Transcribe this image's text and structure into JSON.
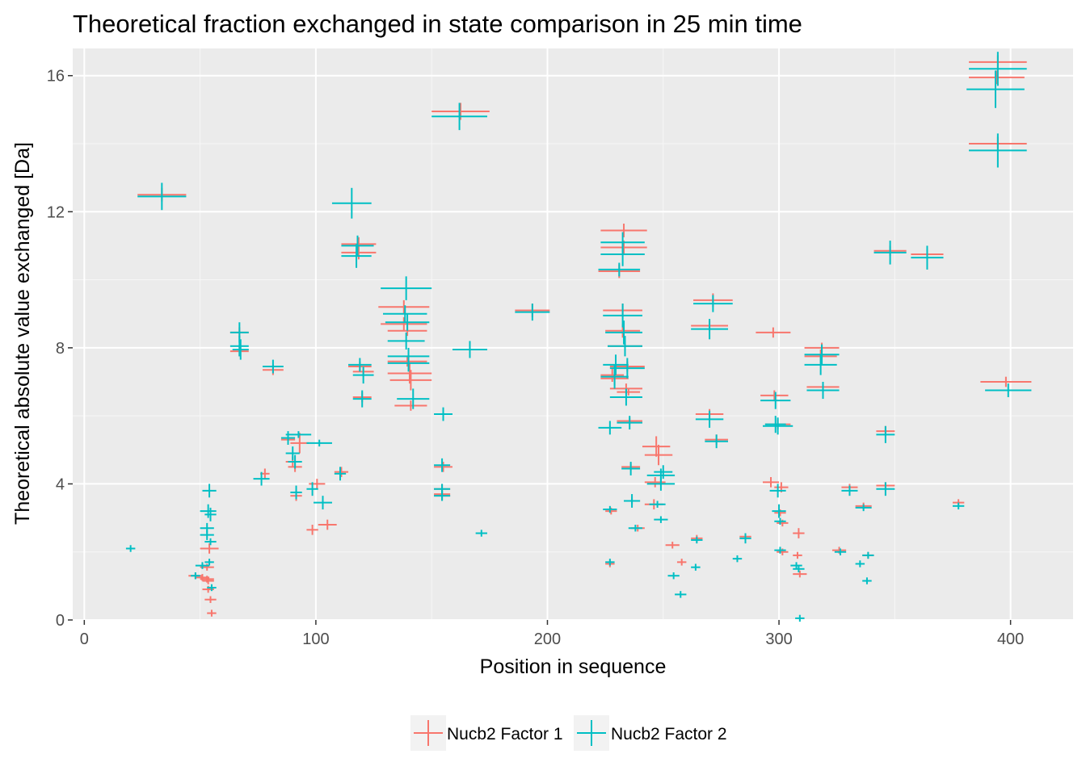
{
  "chart_data": {
    "type": "scatter",
    "title": "Theoretical fraction exchanged in state comparison in 25 min time",
    "xlabel": "Position in sequence",
    "ylabel": "Theoretical absolute value exchanged [Da]",
    "xlim": [
      -5,
      427
    ],
    "ylim": [
      0,
      16.8
    ],
    "x_ticks": [
      0,
      100,
      200,
      300,
      400
    ],
    "y_ticks": [
      0,
      4,
      8,
      12,
      16
    ],
    "grid": true,
    "legend_position": "bottom",
    "panel_background": "#ebebeb",
    "series": [
      {
        "name": "Nucb2 Factor 1",
        "color": "#f8766d",
        "segments": [
          [
            23,
            44,
            12.5,
            0.2
          ],
          [
            63,
            71,
            8.45,
            0.15
          ],
          [
            63,
            71,
            7.9,
            0.15
          ],
          [
            76,
            80,
            4.3,
            0.15
          ],
          [
            77,
            86,
            7.35,
            0.15
          ],
          [
            85,
            91,
            5.3,
            0.15
          ],
          [
            87,
            93,
            4.65,
            0.15
          ],
          [
            88,
            94,
            4.5,
            0.15
          ],
          [
            89,
            97,
            5.2,
            0.3
          ],
          [
            89,
            94,
            3.65,
            0.15
          ],
          [
            97,
            104,
            4.0,
            0.15
          ],
          [
            96,
            101,
            2.65,
            0.15
          ],
          [
            101,
            109,
            2.8,
            0.15
          ],
          [
            108,
            114,
            4.35,
            0.15
          ],
          [
            111,
            126,
            11.05,
            0.2
          ],
          [
            111,
            126,
            10.8,
            0.2
          ],
          [
            114,
            124,
            7.45,
            0.15
          ],
          [
            116,
            125,
            7.3,
            0.15
          ],
          [
            116,
            124,
            6.55,
            0.15
          ],
          [
            127,
            149,
            9.2,
            0.2
          ],
          [
            128,
            148,
            8.7,
            0.2
          ],
          [
            131,
            148,
            8.5,
            0.15
          ],
          [
            131,
            148,
            7.6,
            0.15
          ],
          [
            131,
            150,
            7.25,
            0.3
          ],
          [
            132,
            150,
            7.05,
            0.3
          ],
          [
            134,
            148,
            6.3,
            0.15
          ],
          [
            151,
            159,
            4.5,
            0.15
          ],
          [
            151,
            158,
            3.85,
            0.15
          ],
          [
            151,
            158,
            3.7,
            0.15
          ],
          [
            151,
            158,
            3.65,
            0.15
          ],
          [
            150,
            175,
            14.95,
            0.25
          ],
          [
            186,
            201,
            9.1,
            0.2
          ],
          [
            45,
            51,
            1.3,
            0.1
          ],
          [
            48,
            54,
            1.25,
            0.1
          ],
          [
            50,
            58,
            2.1,
            0.15
          ],
          [
            50,
            56,
            1.55,
            0.1
          ],
          [
            50,
            56,
            1.2,
            0.1
          ],
          [
            51,
            56,
            1.15,
            0.1
          ],
          [
            51,
            56,
            0.9,
            0.1
          ],
          [
            52,
            57,
            0.6,
            0.1
          ],
          [
            53,
            57,
            0.2,
            0.1
          ],
          [
            225,
            230,
            3.2,
            0.1
          ],
          [
            225,
            229,
            1.65,
            0.1
          ],
          [
            223,
            233,
            7.2,
            0.2
          ],
          [
            223,
            235,
            7.1,
            0.2
          ],
          [
            223,
            243,
            11.45,
            0.2
          ],
          [
            223,
            243,
            10.95,
            0.2
          ],
          [
            222,
            240,
            10.25,
            0.2
          ],
          [
            224,
            241,
            9.1,
            0.2
          ],
          [
            225,
            240,
            8.5,
            0.2
          ],
          [
            226,
            241,
            8.05,
            0.15
          ],
          [
            227,
            242,
            7.45,
            0.15
          ],
          [
            227,
            241,
            6.8,
            0.15
          ],
          [
            230,
            240,
            6.7,
            0.1
          ],
          [
            230,
            241,
            5.85,
            0.1
          ],
          [
            232,
            240,
            4.5,
            0.1
          ],
          [
            233,
            240,
            3.5,
            0.1
          ],
          [
            236,
            242,
            2.7,
            0.1
          ],
          [
            241,
            253,
            5.1,
            0.3
          ],
          [
            242,
            254,
            4.85,
            0.3
          ],
          [
            242,
            251,
            4.05,
            0.15
          ],
          [
            242,
            250,
            3.4,
            0.15
          ],
          [
            251,
            257,
            2.2,
            0.1
          ],
          [
            256,
            260,
            1.7,
            0.1
          ],
          [
            262,
            267,
            2.4,
            0.1
          ],
          [
            263,
            280,
            9.4,
            0.2
          ],
          [
            262,
            278,
            8.65,
            0.15
          ],
          [
            264,
            276,
            6.05,
            0.15
          ],
          [
            268,
            278,
            5.3,
            0.15
          ],
          [
            283,
            288,
            2.45,
            0.1
          ],
          [
            290,
            305,
            8.45,
            0.15
          ],
          [
            293,
            300,
            4.05,
            0.15
          ],
          [
            292,
            304,
            6.6,
            0.15
          ],
          [
            294,
            305,
            5.75,
            0.15
          ],
          [
            298,
            304,
            3.9,
            0.15
          ],
          [
            298,
            303,
            3.15,
            0.1
          ],
          [
            299,
            304,
            2.85,
            0.1
          ],
          [
            299,
            304,
            2.0,
            0.1
          ],
          [
            306,
            311,
            2.55,
            0.15
          ],
          [
            306,
            310,
            1.9,
            0.1
          ],
          [
            306,
            312,
            1.35,
            0.1
          ],
          [
            311,
            326,
            8.0,
            0.15
          ],
          [
            311,
            325,
            7.75,
            0.2
          ],
          [
            312,
            326,
            6.85,
            0.15
          ],
          [
            323,
            329,
            2.05,
            0.1
          ],
          [
            327,
            334,
            3.9,
            0.1
          ],
          [
            333,
            340,
            3.35,
            0.1
          ],
          [
            336,
            341,
            1.9,
            0.1
          ],
          [
            341,
            355,
            10.85,
            0.15
          ],
          [
            342,
            350,
            5.55,
            0.15
          ],
          [
            342,
            350,
            3.95,
            0.1
          ],
          [
            357,
            371,
            10.75,
            0.15
          ],
          [
            375,
            380,
            3.45,
            0.1
          ],
          [
            382,
            407,
            16.4,
            0.2
          ],
          [
            382,
            406,
            15.95,
            0.2
          ],
          [
            382,
            407,
            14.0,
            0.2
          ],
          [
            387,
            409,
            7.0,
            0.15
          ]
        ]
      },
      {
        "name": "Nucb2 Factor 2",
        "color": "#00bfc4",
        "segments": [
          [
            18,
            22,
            2.1,
            0.1
          ],
          [
            23,
            44,
            12.45,
            0.4
          ],
          [
            48,
            54,
            1.6,
            0.1
          ],
          [
            46,
            50,
            1.3,
            0.1
          ],
          [
            51,
            57,
            3.8,
            0.2
          ],
          [
            50,
            57,
            3.2,
            0.2
          ],
          [
            52,
            57,
            3.1,
            0.2
          ],
          [
            50,
            56,
            2.7,
            0.15
          ],
          [
            50,
            56,
            2.5,
            0.15
          ],
          [
            52,
            57,
            2.3,
            0.1
          ],
          [
            52,
            56,
            1.7,
            0.1
          ],
          [
            53,
            57,
            0.95,
            0.1
          ],
          [
            63,
            71,
            8.45,
            0.3
          ],
          [
            63,
            71,
            8.05,
            0.3
          ],
          [
            64,
            71,
            7.95,
            0.3
          ],
          [
            73,
            80,
            4.15,
            0.2
          ],
          [
            77,
            86,
            7.45,
            0.2
          ],
          [
            85,
            91,
            5.35,
            0.2
          ],
          [
            87,
            98,
            5.45,
            0.1
          ],
          [
            87,
            93,
            4.9,
            0.2
          ],
          [
            88,
            94,
            4.65,
            0.2
          ],
          [
            89,
            94,
            3.75,
            0.2
          ],
          [
            96,
            101,
            3.85,
            0.2
          ],
          [
            96,
            107,
            5.2,
            0.1
          ],
          [
            99,
            107,
            3.45,
            0.2
          ],
          [
            108,
            113,
            4.3,
            0.2
          ],
          [
            107,
            124,
            12.25,
            0.45
          ],
          [
            111,
            125,
            11.0,
            0.3
          ],
          [
            111,
            124,
            10.7,
            0.35
          ],
          [
            114,
            124,
            7.5,
            0.2
          ],
          [
            116,
            125,
            7.2,
            0.25
          ],
          [
            116,
            124,
            6.5,
            0.25
          ],
          [
            128,
            150,
            9.75,
            0.35
          ],
          [
            129,
            148,
            9.0,
            0.25
          ],
          [
            130,
            149,
            8.75,
            0.25
          ],
          [
            131,
            147,
            8.2,
            0.25
          ],
          [
            131,
            149,
            7.75,
            0.25
          ],
          [
            131,
            149,
            7.55,
            0.25
          ],
          [
            135,
            149,
            6.5,
            0.3
          ],
          [
            151,
            159,
            6.05,
            0.2
          ],
          [
            151,
            158,
            4.55,
            0.2
          ],
          [
            151,
            158,
            3.85,
            0.15
          ],
          [
            151,
            158,
            3.65,
            0.15
          ],
          [
            150,
            174,
            14.8,
            0.4
          ],
          [
            159,
            174,
            7.95,
            0.25
          ],
          [
            169,
            174,
            2.55,
            0.1
          ],
          [
            186,
            201,
            9.05,
            0.25
          ],
          [
            224,
            230,
            3.25,
            0.1
          ],
          [
            225,
            229,
            1.7,
            0.1
          ],
          [
            222,
            232,
            5.65,
            0.2
          ],
          [
            223,
            235,
            7.15,
            0.35
          ],
          [
            224,
            235,
            7.5,
            0.3
          ],
          [
            223,
            242,
            11.1,
            0.3
          ],
          [
            223,
            242,
            10.75,
            0.35
          ],
          [
            222,
            240,
            10.3,
            0.2
          ],
          [
            224,
            241,
            8.95,
            0.35
          ],
          [
            225,
            241,
            8.45,
            0.35
          ],
          [
            226,
            241,
            8.05,
            0.3
          ],
          [
            227,
            242,
            7.4,
            0.3
          ],
          [
            227,
            241,
            6.55,
            0.25
          ],
          [
            230,
            241,
            5.8,
            0.2
          ],
          [
            232,
            240,
            4.45,
            0.2
          ],
          [
            233,
            240,
            3.5,
            0.2
          ],
          [
            235,
            241,
            2.7,
            0.1
          ],
          [
            243,
            255,
            4.25,
            0.2
          ],
          [
            243,
            255,
            4.0,
            0.2
          ],
          [
            246,
            254,
            4.35,
            0.2
          ],
          [
            244,
            251,
            3.4,
            0.1
          ],
          [
            246,
            252,
            2.95,
            0.1
          ],
          [
            252,
            257,
            1.3,
            0.1
          ],
          [
            255,
            260,
            0.75,
            0.1
          ],
          [
            262,
            266,
            1.55,
            0.1
          ],
          [
            262,
            267,
            2.35,
            0.1
          ],
          [
            263,
            280,
            9.3,
            0.25
          ],
          [
            262,
            278,
            8.55,
            0.3
          ],
          [
            264,
            276,
            5.9,
            0.25
          ],
          [
            268,
            278,
            5.25,
            0.2
          ],
          [
            280,
            284,
            1.8,
            0.1
          ],
          [
            283,
            288,
            2.4,
            0.15
          ],
          [
            292,
            305,
            6.45,
            0.25
          ],
          [
            293,
            306,
            5.7,
            0.25
          ],
          [
            294,
            303,
            5.75,
            0.25
          ],
          [
            296,
            303,
            3.8,
            0.2
          ],
          [
            297,
            303,
            3.2,
            0.2
          ],
          [
            298,
            303,
            2.9,
            0.1
          ],
          [
            298,
            303,
            2.05,
            0.1
          ],
          [
            305,
            310,
            1.6,
            0.1
          ],
          [
            306,
            311,
            1.5,
            0.1
          ],
          [
            307,
            311,
            0.05,
            0.1
          ],
          [
            311,
            326,
            7.8,
            0.3
          ],
          [
            311,
            325,
            7.5,
            0.3
          ],
          [
            312,
            326,
            6.75,
            0.25
          ],
          [
            324,
            329,
            2.0,
            0.1
          ],
          [
            327,
            334,
            3.8,
            0.15
          ],
          [
            333,
            340,
            3.3,
            0.1
          ],
          [
            333,
            337,
            1.65,
            0.1
          ],
          [
            336,
            340,
            1.15,
            0.1
          ],
          [
            336,
            341,
            1.9,
            0.1
          ],
          [
            341,
            355,
            10.8,
            0.35
          ],
          [
            342,
            350,
            5.45,
            0.25
          ],
          [
            342,
            350,
            3.85,
            0.2
          ],
          [
            357,
            371,
            10.65,
            0.35
          ],
          [
            375,
            380,
            3.35,
            0.1
          ],
          [
            382,
            407,
            16.2,
            0.5
          ],
          [
            381,
            406,
            15.6,
            0.55
          ],
          [
            382,
            407,
            13.8,
            0.5
          ],
          [
            389,
            409,
            6.75,
            0.2
          ]
        ]
      }
    ]
  }
}
